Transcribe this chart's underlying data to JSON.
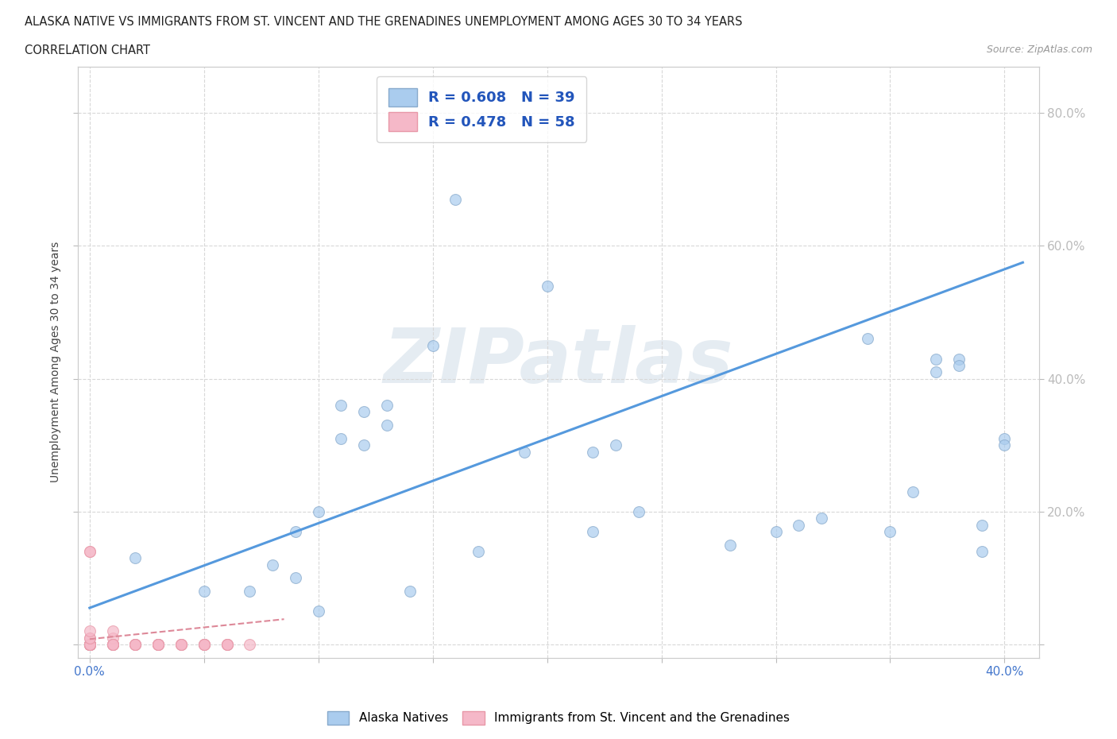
{
  "title_line1": "ALASKA NATIVE VS IMMIGRANTS FROM ST. VINCENT AND THE GRENADINES UNEMPLOYMENT AMONG AGES 30 TO 34 YEARS",
  "title_line2": "CORRELATION CHART",
  "source": "Source: ZipAtlas.com",
  "ylabel_label": "Unemployment Among Ages 30 to 34 years",
  "xlim": [
    -0.005,
    0.415
  ],
  "ylim": [
    -0.02,
    0.87
  ],
  "blue_scatter_x": [
    0.02,
    0.05,
    0.07,
    0.08,
    0.09,
    0.09,
    0.1,
    0.1,
    0.11,
    0.11,
    0.12,
    0.12,
    0.13,
    0.13,
    0.14,
    0.15,
    0.16,
    0.17,
    0.19,
    0.2,
    0.22,
    0.22,
    0.23,
    0.24,
    0.28,
    0.3,
    0.31,
    0.32,
    0.34,
    0.35,
    0.36,
    0.37,
    0.37,
    0.38,
    0.38,
    0.39,
    0.39,
    0.4,
    0.4
  ],
  "blue_scatter_y": [
    0.13,
    0.08,
    0.08,
    0.12,
    0.1,
    0.17,
    0.05,
    0.2,
    0.36,
    0.31,
    0.35,
    0.3,
    0.33,
    0.36,
    0.08,
    0.45,
    0.67,
    0.14,
    0.29,
    0.54,
    0.17,
    0.29,
    0.3,
    0.2,
    0.15,
    0.17,
    0.18,
    0.19,
    0.46,
    0.17,
    0.23,
    0.43,
    0.41,
    0.43,
    0.42,
    0.14,
    0.18,
    0.31,
    0.3
  ],
  "pink_scatter_x": [
    0.0,
    0.0,
    0.0,
    0.0,
    0.0,
    0.0,
    0.0,
    0.0,
    0.0,
    0.0,
    0.0,
    0.0,
    0.0,
    0.0,
    0.0,
    0.0,
    0.0,
    0.0,
    0.0,
    0.0,
    0.0,
    0.0,
    0.0,
    0.0,
    0.0,
    0.01,
    0.01,
    0.01,
    0.01,
    0.01,
    0.01,
    0.01,
    0.01,
    0.02,
    0.02,
    0.02,
    0.02,
    0.02,
    0.03,
    0.03,
    0.03,
    0.03,
    0.03,
    0.03,
    0.04,
    0.04,
    0.04,
    0.04,
    0.05,
    0.05,
    0.05,
    0.05,
    0.05,
    0.06,
    0.06,
    0.06,
    0.06,
    0.07
  ],
  "pink_scatter_y": [
    0.0,
    0.0,
    0.0,
    0.0,
    0.0,
    0.0,
    0.0,
    0.0,
    0.0,
    0.0,
    0.0,
    0.0,
    0.0,
    0.0,
    0.0,
    0.0,
    0.0,
    0.0,
    0.0,
    0.0,
    0.01,
    0.01,
    0.02,
    0.14,
    0.14,
    0.0,
    0.0,
    0.0,
    0.0,
    0.01,
    0.02,
    0.0,
    0.0,
    0.0,
    0.0,
    0.0,
    0.0,
    0.0,
    0.0,
    0.0,
    0.0,
    0.0,
    0.0,
    0.0,
    0.0,
    0.0,
    0.0,
    0.0,
    0.0,
    0.0,
    0.0,
    0.0,
    0.0,
    0.0,
    0.0,
    0.0,
    0.0,
    0.0
  ],
  "blue_trendline_x": [
    0.0,
    0.408
  ],
  "blue_trendline_y": [
    0.055,
    0.575
  ],
  "pink_trendline_x": [
    0.0,
    0.085
  ],
  "pink_trendline_y": [
    0.008,
    0.038
  ],
  "blue_marker_color": "#aaccee",
  "blue_edge_color": "#88aacc",
  "pink_marker_color": "#f5b8c8",
  "pink_edge_color": "#e898a8",
  "blue_line_color": "#5599dd",
  "pink_line_color": "#dd8898",
  "watermark_color": "#d0dde8",
  "bg_color": "#ffffff",
  "grid_color": "#d8d8d8"
}
